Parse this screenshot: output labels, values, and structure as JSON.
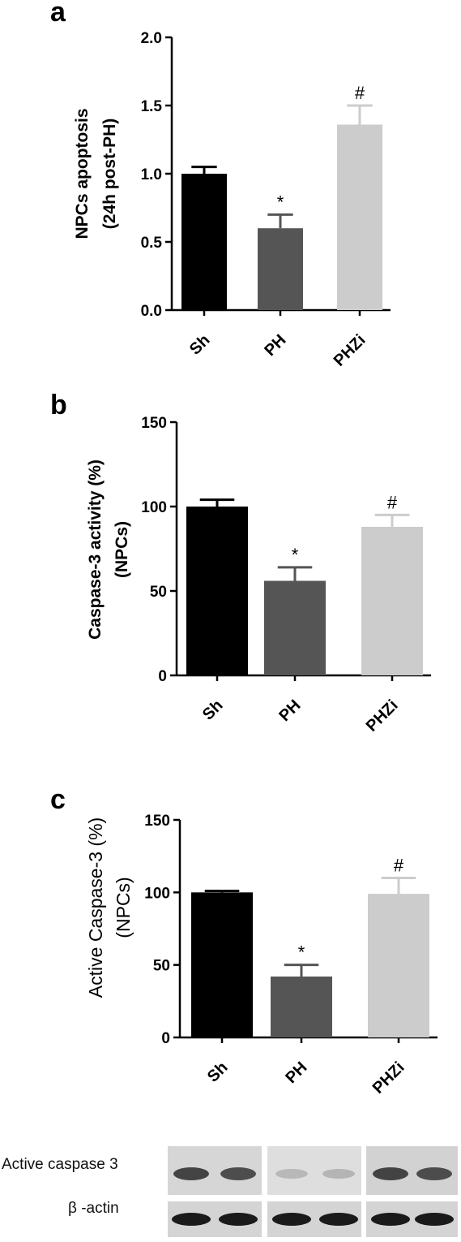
{
  "chart_data": [
    {
      "panel": "a",
      "type": "bar",
      "categories": [
        "Sh",
        "PH",
        "PHZi"
      ],
      "values": [
        1.0,
        0.6,
        1.36
      ],
      "errors": [
        0.05,
        0.1,
        0.14
      ],
      "significance": [
        "",
        "*",
        "#"
      ],
      "ylabel": [
        "NPCs apoptosis",
        "(24h post-PH)"
      ],
      "ylim": [
        0,
        2.0
      ],
      "yticks": [
        "0.0",
        "0.5",
        "1.0",
        "1.5",
        "2.0"
      ],
      "colors": [
        "#000000",
        "#555555",
        "#cccccc"
      ],
      "grid": false
    },
    {
      "panel": "b",
      "type": "bar",
      "categories": [
        "Sh",
        "PH",
        "PHZi"
      ],
      "values": [
        100,
        56,
        88
      ],
      "errors": [
        4,
        8,
        7
      ],
      "significance": [
        "",
        "*",
        "#"
      ],
      "ylabel": [
        "Caspase-3 activity (%)",
        "(NPCs)"
      ],
      "ylim": [
        0,
        150
      ],
      "yticks": [
        "0",
        "50",
        "100",
        "150"
      ],
      "colors": [
        "#000000",
        "#555555",
        "#cccccc"
      ],
      "grid": false
    },
    {
      "panel": "c",
      "type": "bar",
      "categories": [
        "Sh",
        "PH",
        "PHZi"
      ],
      "values": [
        100,
        42,
        99
      ],
      "errors": [
        1,
        8,
        11
      ],
      "significance": [
        "",
        "*",
        "#"
      ],
      "ylabel": [
        "Active Caspase-3  (%)",
        "(NPCs)"
      ],
      "ylim": [
        0,
        150
      ],
      "yticks": [
        "0",
        "50",
        "100",
        "150"
      ],
      "colors": [
        "#000000",
        "#555555",
        "#cccccc"
      ],
      "grid": false
    }
  ],
  "blot": {
    "rows": [
      {
        "label": "Active caspase 3"
      },
      {
        "label": "β -actin"
      }
    ]
  }
}
